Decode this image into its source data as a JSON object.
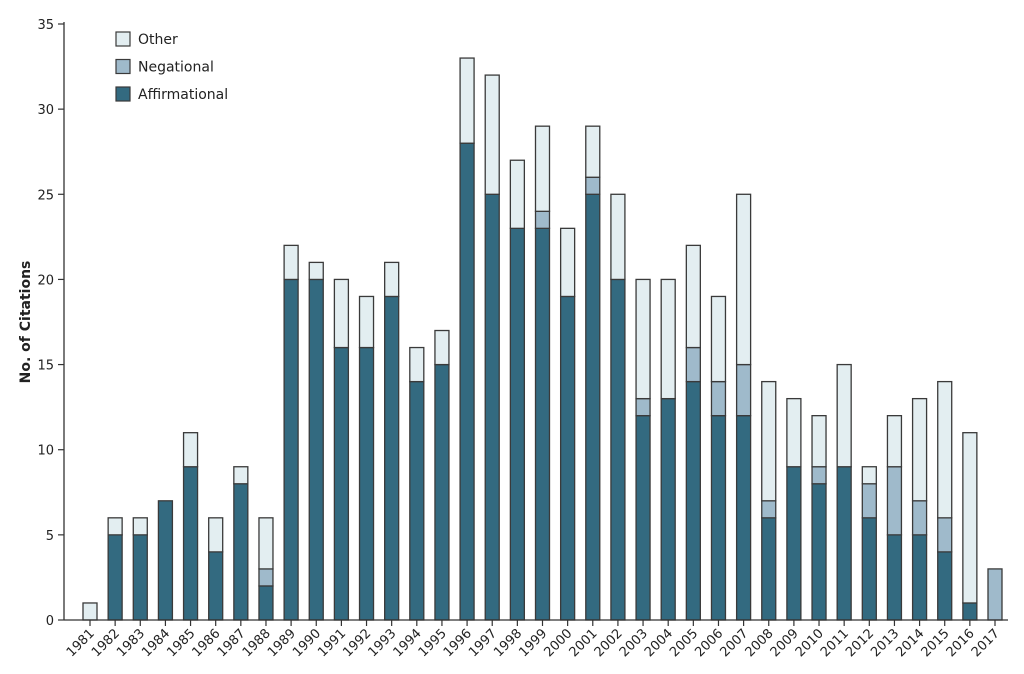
{
  "chart_data": {
    "type": "bar",
    "stacked": true,
    "title": "",
    "xlabel": "",
    "ylabel": "No. of Citations",
    "ylim": [
      0,
      35
    ],
    "yticks": [
      0,
      5,
      10,
      15,
      20,
      25,
      30,
      35
    ],
    "grid": false,
    "legend_placement": "top-left",
    "categories": [
      "1981",
      "1982",
      "1983",
      "1984",
      "1985",
      "1986",
      "1987",
      "1988",
      "1989",
      "1990",
      "1991",
      "1992",
      "1993",
      "1994",
      "1995",
      "1996",
      "1997",
      "1998",
      "1999",
      "2000",
      "2001",
      "2002",
      "2003",
      "2004",
      "2005",
      "2006",
      "2007",
      "2008",
      "2009",
      "2010",
      "2011",
      "2012",
      "2013",
      "2014",
      "2015",
      "2016",
      "2017"
    ],
    "series": [
      {
        "name": "Affirmational",
        "color": "#336a80",
        "values": [
          0,
          5,
          5,
          7,
          9,
          4,
          8,
          2,
          20,
          20,
          16,
          16,
          19,
          14,
          15,
          28,
          25,
          23,
          23,
          19,
          25,
          20,
          12,
          13,
          14,
          12,
          12,
          6,
          9,
          8,
          9,
          6,
          5,
          5,
          4,
          1,
          0
        ]
      },
      {
        "name": "Negational",
        "color": "#9fbacb",
        "values": [
          0,
          0,
          0,
          0,
          0,
          0,
          0,
          1,
          0,
          0,
          0,
          0,
          0,
          0,
          0,
          0,
          0,
          0,
          1,
          0,
          1,
          0,
          1,
          0,
          2,
          2,
          3,
          1,
          0,
          1,
          0,
          2,
          4,
          2,
          2,
          0,
          3
        ]
      },
      {
        "name": "Other",
        "color": "#e3eef1",
        "values": [
          1,
          1,
          1,
          0,
          2,
          2,
          1,
          3,
          2,
          1,
          4,
          3,
          2,
          2,
          2,
          5,
          7,
          4,
          5,
          4,
          3,
          5,
          7,
          7,
          6,
          5,
          10,
          7,
          4,
          3,
          6,
          1,
          3,
          6,
          8,
          10,
          0
        ]
      }
    ],
    "legend_order": [
      "Other",
      "Negational",
      "Affirmational"
    ]
  }
}
